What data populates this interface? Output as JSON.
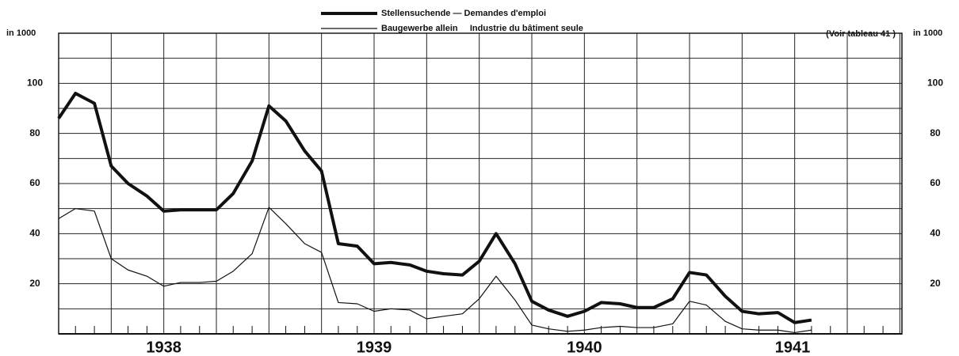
{
  "chart_data": {
    "type": "line",
    "y_label": "in 1000",
    "annotation": "(Voir tableau 41 )",
    "x": [
      1937.96,
      1938.04,
      1938.13,
      1938.21,
      1938.29,
      1938.38,
      1938.46,
      1938.54,
      1938.63,
      1938.71,
      1938.79,
      1938.88,
      1938.96,
      1939.04,
      1939.13,
      1939.21,
      1939.29,
      1939.38,
      1939.46,
      1939.54,
      1939.63,
      1939.71,
      1939.79,
      1939.88,
      1939.96,
      1940.04,
      1940.13,
      1940.21,
      1940.29,
      1940.38,
      1940.46,
      1940.54,
      1940.63,
      1940.71,
      1940.79,
      1940.88,
      1940.96,
      1941.04,
      1941.13,
      1941.21,
      1941.29,
      1941.38,
      1941.46,
      1941.54
    ],
    "series": [
      {
        "name": "Stellensuchende — Demandes d'emploi",
        "color": "#111111",
        "width": 4,
        "values": [
          86,
          96,
          92,
          67,
          60,
          55,
          49,
          49.5,
          49.5,
          49.5,
          56,
          69,
          91,
          85,
          73,
          65,
          36,
          35,
          28,
          28.5,
          27.5,
          25,
          24,
          23.5,
          29,
          40,
          28,
          13,
          9.5,
          7,
          9,
          12.5,
          12,
          10.5,
          10.5,
          14,
          24.5,
          23.5,
          15,
          9,
          8,
          8.5,
          4.5,
          5.5
        ]
      },
      {
        "name": "Baugewerbe allein     Industrie du bâtiment seule",
        "color": "#111111",
        "width": 1.2,
        "values": [
          46,
          50,
          49,
          30,
          25.5,
          23,
          19,
          20.5,
          20.5,
          21,
          25,
          32,
          50.5,
          44,
          36,
          32.5,
          12.5,
          12,
          9,
          10,
          9.5,
          6,
          7,
          8,
          14,
          23,
          13.5,
          3.5,
          2,
          1,
          1.5,
          2.5,
          3,
          2.5,
          2.5,
          4,
          13,
          11.5,
          5,
          2,
          1.5,
          1.5,
          0.5,
          1.5
        ]
      }
    ],
    "xlim": [
      1937.96,
      1941.97
    ],
    "xticks": [
      1937.96,
      1938.21,
      1938.46,
      1938.71,
      1938.96,
      1939.21,
      1939.46,
      1939.71,
      1939.96,
      1940.21,
      1940.46,
      1940.71,
      1940.96,
      1941.21,
      1941.46,
      1941.71,
      1941.96
    ],
    "bold_xticks": [
      1938.96,
      1940.96
    ],
    "xminor": [
      1938.04,
      1938.13,
      1938.29,
      1938.38,
      1938.54,
      1938.63,
      1938.79,
      1938.88,
      1939.04,
      1939.13,
      1939.29,
      1939.38,
      1939.54,
      1939.63,
      1939.79,
      1939.88,
      1940.04,
      1940.13,
      1940.29,
      1940.38,
      1940.54,
      1940.63,
      1940.79,
      1940.88,
      1941.04,
      1941.13,
      1941.29,
      1941.38,
      1941.54,
      1941.63,
      1941.79,
      1941.88
    ],
    "year_labels": [
      {
        "value": 1938.46,
        "label": "1938"
      },
      {
        "value": 1939.46,
        "label": "1939"
      },
      {
        "value": 1940.46,
        "label": "1940"
      },
      {
        "value": 1941.45,
        "label": "1941"
      }
    ],
    "ylim": [
      0,
      120
    ],
    "yticks": [
      20,
      40,
      60,
      80,
      100
    ],
    "yminor": [
      10,
      30,
      50,
      70,
      90,
      110,
      120
    ],
    "grid": true
  }
}
